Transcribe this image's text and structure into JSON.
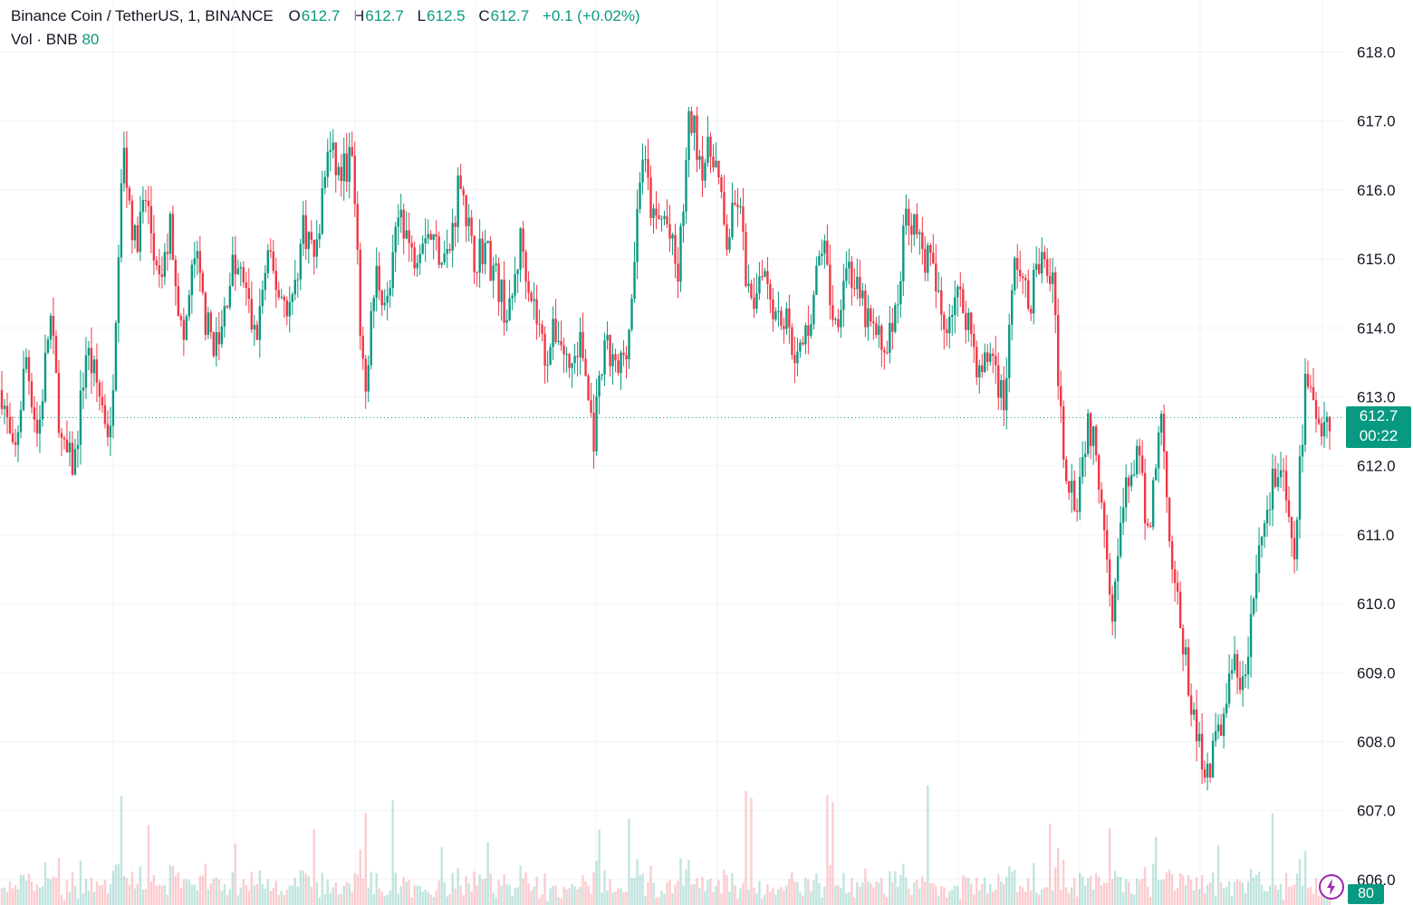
{
  "legend": {
    "symbol": "Binance Coin / TetherUS, 1, BINANCE",
    "o_label": "O",
    "o_value": "612.7",
    "h_label": "H",
    "h_value": "612.7",
    "l_label": "L",
    "l_value": "612.5",
    "c_label": "C",
    "c_value": "612.7",
    "change": "+0.1 (+0.02%)",
    "vol_label": "Vol · BNB",
    "vol_value": "80"
  },
  "price_tag": {
    "price": "612.7",
    "countdown": "00:22"
  },
  "volume_tag": "80",
  "colors": {
    "up": "#089981",
    "down": "#f23645",
    "grid": "#f0f3fa",
    "text": "#131722",
    "accent": "#089981"
  },
  "chart_data": {
    "type": "candlestick",
    "y_ticks": [
      "618.0",
      "617.0",
      "616.0",
      "615.0",
      "614.0",
      "613.0",
      "612.0",
      "611.0",
      "610.0",
      "609.0",
      "608.0",
      "607.0",
      "606.0"
    ],
    "ylim": [
      605.7,
      618.3
    ],
    "grid": true,
    "last_price": 612.7,
    "series": [
      {
        "close_path": [
          613.1,
          612.0,
          613.6,
          612.4,
          614.2,
          612.2,
          612.0,
          613.7,
          613.1,
          612.4,
          616.7,
          615.2,
          615.9,
          614.5,
          615.5,
          613.7,
          615.1,
          614.0,
          613.7,
          614.9,
          614.7,
          613.8,
          615.0,
          614.5,
          614.3,
          615.5,
          615.0,
          616.6,
          616.2,
          616.5,
          613.0,
          614.8,
          614.3,
          615.8,
          615.0,
          615.5,
          615.2,
          615.0,
          616.3,
          615.0,
          615.2,
          614.7,
          614.1,
          615.3,
          614.4,
          613.6,
          614.0,
          613.4,
          613.8,
          612.4,
          613.7,
          613.3,
          614.0,
          616.6,
          615.5,
          615.6,
          614.7,
          617.1,
          616.4,
          616.6,
          615.2,
          615.9,
          614.2,
          615.0,
          614.3,
          614.1,
          613.5,
          614.2,
          615.3,
          614.0,
          615.0,
          614.4,
          614.0,
          613.7,
          614.1,
          615.8,
          615.2,
          614.9,
          614.0,
          614.5,
          614.2,
          613.3,
          613.7,
          612.9,
          615.1,
          614.3,
          615.0,
          614.7,
          612.1,
          611.5,
          612.7,
          611.8,
          610.0,
          611.5,
          612.2,
          611.0,
          612.8,
          610.5,
          609.2,
          608.0,
          607.6,
          608.3,
          609.1,
          608.8,
          610.6,
          611.6,
          612.0,
          610.5,
          613.2,
          612.7,
          612.7
        ],
        "volume_notes": "spikes near the large downward moves"
      }
    ]
  }
}
